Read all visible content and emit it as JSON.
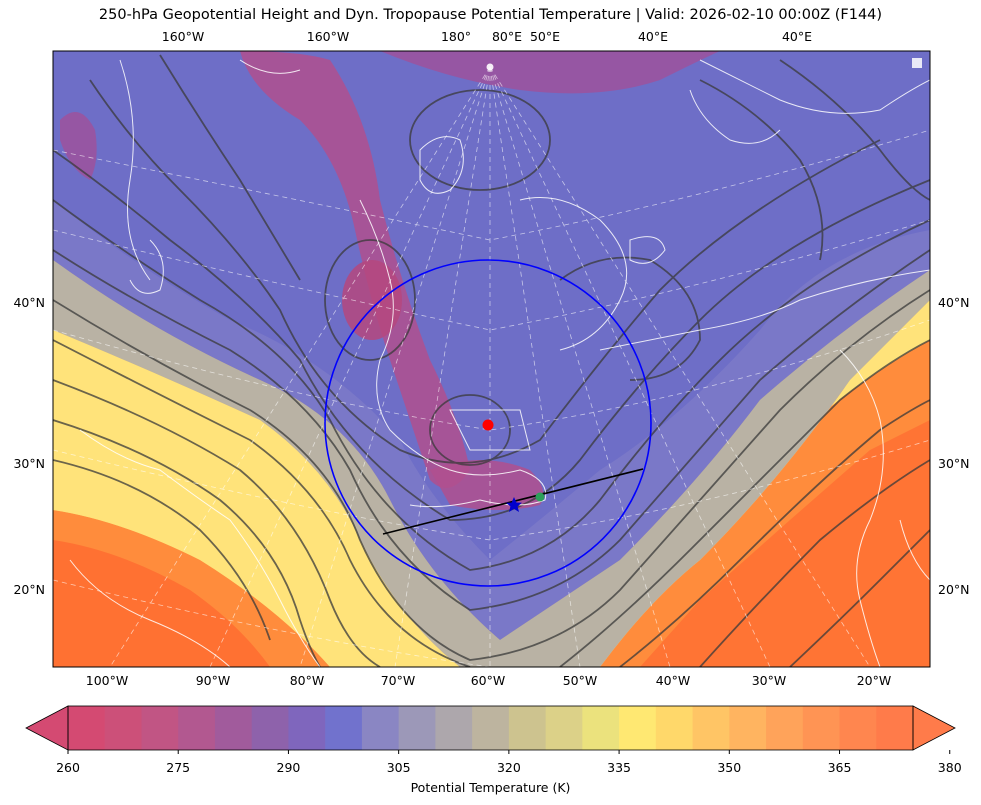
{
  "title": "250-hPa Geopotential Height and Dyn. Tropopause Potential Temperature   |  Valid: 2026-02-10 00:00Z (F144)",
  "top_lon_labels": [
    "160°W",
    "160°W",
    "180°",
    "80°E",
    "50°E",
    "40°E",
    "40°E"
  ],
  "bottom_lon_labels": [
    "100°W",
    "90°W",
    "80°W",
    "70°W",
    "60°W",
    "50°W",
    "40°W",
    "30°W",
    "20°W"
  ],
  "left_lat_labels": [
    "40°N",
    "30°N",
    "20°N"
  ],
  "right_lat_labels": [
    "40°N",
    "30°N",
    "20°N"
  ],
  "colorbar": {
    "label": "Potential Temperature (K)",
    "tick_labels": [
      "260",
      "275",
      "290",
      "305",
      "320",
      "335",
      "350",
      "365",
      "380"
    ],
    "colors": [
      "#d44a72",
      "#cc5079",
      "#c15584",
      "#b25890",
      "#a15b9c",
      "#8e62ab",
      "#7f66bd",
      "#7172cd",
      "#8a86c3",
      "#9c98b8",
      "#ada7ac",
      "#bdb49f",
      "#cdc38f",
      "#dcd188",
      "#ebe27d",
      "#ffe872",
      "#ffd86a",
      "#ffc565",
      "#ffb460",
      "#ffa35a",
      "#ff9454",
      "#ff864f",
      "#ff7b4a"
    ]
  },
  "markers": {
    "colors": {
      "circle": "#0000ff",
      "red_dot": "#ff0000",
      "star": "#0000cc",
      "green_dot": "#2ca05a",
      "line": "#000000"
    }
  }
}
